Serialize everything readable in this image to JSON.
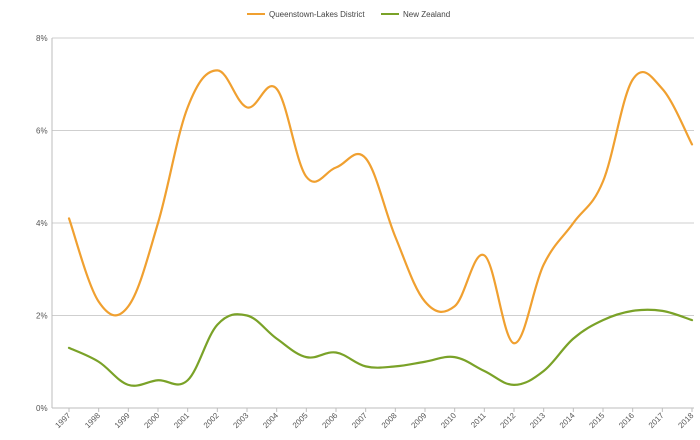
{
  "chart_data": {
    "type": "line",
    "title": "",
    "xlabel": "",
    "ylabel": "",
    "x": [
      "1997",
      "1998",
      "1999",
      "2000",
      "2001",
      "2002",
      "2003",
      "2004",
      "2005",
      "2006",
      "2007",
      "2008",
      "2009",
      "2010",
      "2011",
      "2012",
      "2013",
      "2014",
      "2015",
      "2016",
      "2017",
      "2018"
    ],
    "series": [
      {
        "name": "Queenstown-Lakes District",
        "color": "#f0a030",
        "values": [
          4.1,
          2.3,
          2.2,
          4.0,
          6.5,
          7.3,
          6.5,
          6.9,
          5.0,
          5.2,
          5.4,
          3.7,
          2.3,
          2.2,
          3.3,
          1.4,
          3.1,
          4.0,
          4.9,
          7.1,
          6.9,
          5.7
        ]
      },
      {
        "name": "New Zealand",
        "color": "#7aa228",
        "values": [
          1.3,
          1.0,
          0.5,
          0.6,
          0.6,
          1.8,
          2.0,
          1.5,
          1.1,
          1.2,
          0.9,
          0.9,
          1.0,
          1.1,
          0.8,
          0.5,
          0.8,
          1.5,
          1.9,
          2.1,
          2.1,
          1.9
        ]
      }
    ],
    "ylim": [
      0,
      8
    ],
    "yticks": [
      0,
      2,
      4,
      6,
      8
    ],
    "ytick_labels": [
      "0%",
      "2%",
      "4%",
      "6%",
      "8%"
    ],
    "grid": true,
    "legend_position": "top-center"
  }
}
